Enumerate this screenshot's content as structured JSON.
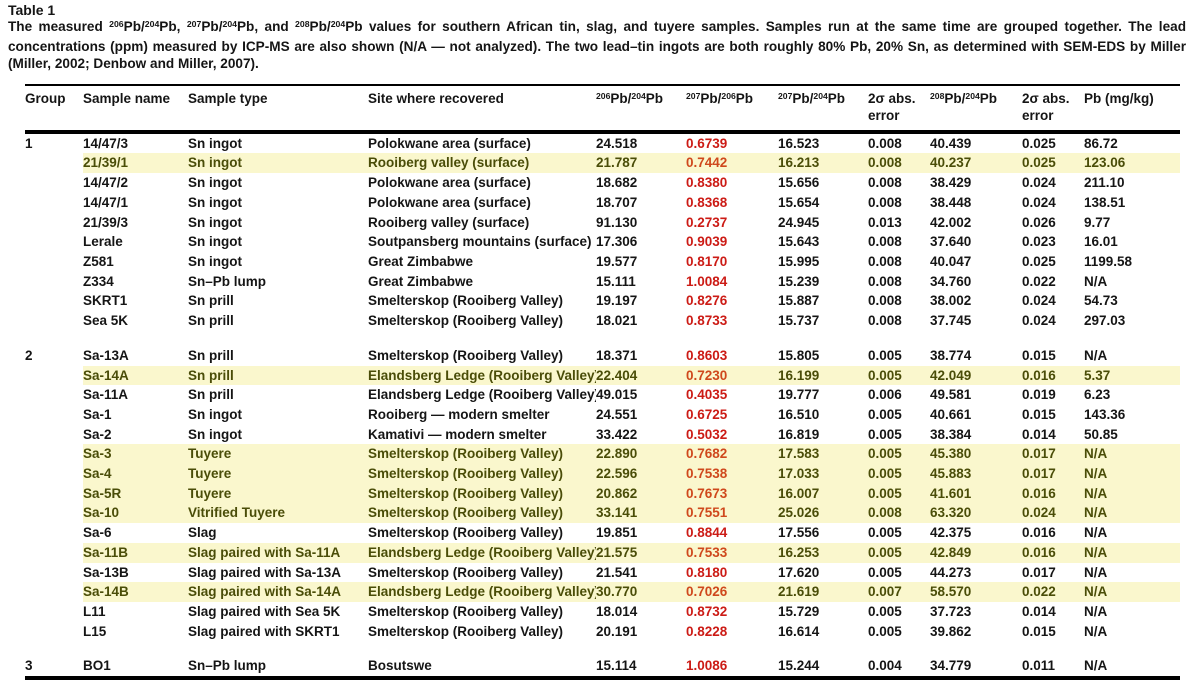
{
  "title": "Table 1",
  "caption": "The measured ^{206}Pb/^{204}Pb, ^{207}Pb/^{204}Pb, and ^{208}Pb/^{204}Pb values for southern African tin, slag, and tuyere samples. Samples run at the same time are grouped together. The lead concentrations (ppm) measured by ICP-MS are also shown (N/A — not analyzed). The two lead–tin ingots are both roughly 80% Pb, 20% Sn, as determined with SEM-EDS by Miller (Miller, 2002; Denbow and Miller, 2007).",
  "colors": {
    "text": "#151515",
    "red": "#cc1b15",
    "red-on-highlight": "#cf481c",
    "highlight-bg": "#faf7cd",
    "highlight-text": "#4a4d08"
  },
  "chart_data": {
    "type": "table",
    "headers": [
      "Group",
      "Sample name",
      "Sample type",
      "Site where recovered",
      "^{206}Pb/^{204}Pb",
      "^{207}Pb/^{206}Pb",
      "^{207}Pb/^{204}Pb",
      "2σ abs. error",
      "^{208}Pb/^{204}Pb",
      "2σ abs. error",
      "Pb (mg/kg)"
    ],
    "groups": [
      {
        "group": "1",
        "rows": [
          {
            "hl": false,
            "cells": [
              "14/47/3",
              "Sn ingot",
              "Polokwane area (surface)",
              "24.518",
              "0.6739",
              "16.523",
              "0.008",
              "40.439",
              "0.025",
              "86.72"
            ]
          },
          {
            "hl": true,
            "cells": [
              "21/39/1",
              "Sn ingot",
              "Rooiberg valley (surface)",
              "21.787",
              "0.7442",
              "16.213",
              "0.008",
              "40.237",
              "0.025",
              "123.06"
            ]
          },
          {
            "hl": false,
            "cells": [
              "14/47/2",
              "Sn ingot",
              "Polokwane area (surface)",
              "18.682",
              "0.8380",
              "15.656",
              "0.008",
              "38.429",
              "0.024",
              "211.10"
            ]
          },
          {
            "hl": false,
            "cells": [
              "14/47/1",
              "Sn ingot",
              "Polokwane area (surface)",
              "18.707",
              "0.8368",
              "15.654",
              "0.008",
              "38.448",
              "0.024",
              "138.51"
            ]
          },
          {
            "hl": false,
            "cells": [
              "21/39/3",
              "Sn ingot",
              "Rooiberg valley (surface)",
              "91.130",
              "0.2737",
              "24.945",
              "0.013",
              "42.002",
              "0.026",
              "9.77"
            ]
          },
          {
            "hl": false,
            "cells": [
              "Lerale",
              "Sn ingot",
              "Soutpansberg mountains (surface)",
              "17.306",
              "0.9039",
              "15.643",
              "0.008",
              "37.640",
              "0.023",
              "16.01"
            ]
          },
          {
            "hl": false,
            "cells": [
              "Z581",
              "Sn ingot",
              "Great Zimbabwe",
              "19.577",
              "0.8170",
              "15.995",
              "0.008",
              "40.047",
              "0.025",
              "1199.58"
            ]
          },
          {
            "hl": false,
            "cells": [
              "Z334",
              "Sn–Pb lump",
              "Great Zimbabwe",
              "15.111",
              "1.0084",
              "15.239",
              "0.008",
              "34.760",
              "0.022",
              "N/A"
            ]
          },
          {
            "hl": false,
            "cells": [
              "SKRT1",
              "Sn prill",
              "Smelterskop (Rooiberg Valley)",
              "19.197",
              "0.8276",
              "15.887",
              "0.008",
              "38.002",
              "0.024",
              "54.73"
            ]
          },
          {
            "hl": false,
            "cells": [
              "Sea 5K",
              "Sn prill",
              "Smelterskop (Rooiberg Valley)",
              "18.021",
              "0.8733",
              "15.737",
              "0.008",
              "37.745",
              "0.024",
              "297.03"
            ]
          }
        ]
      },
      {
        "group": "2",
        "rows": [
          {
            "hl": false,
            "cells": [
              "Sa-13A",
              "Sn prill",
              "Smelterskop (Rooiberg Valley)",
              "18.371",
              "0.8603",
              "15.805",
              "0.005",
              "38.774",
              "0.015",
              "N/A"
            ]
          },
          {
            "hl": true,
            "cells": [
              "Sa-14A",
              "Sn prill",
              "Elandsberg Ledge (Rooiberg Valley)",
              "22.404",
              "0.7230",
              "16.199",
              "0.005",
              "42.049",
              "0.016",
              "5.37"
            ]
          },
          {
            "hl": false,
            "cells": [
              "Sa-11A",
              "Sn prill",
              "Elandsberg Ledge (Rooiberg Valley)",
              "49.015",
              "0.4035",
              "19.777",
              "0.006",
              "49.581",
              "0.019",
              "6.23"
            ]
          },
          {
            "hl": false,
            "cells": [
              "Sa-1",
              "Sn ingot",
              "Rooiberg — modern smelter",
              "24.551",
              "0.6725",
              "16.510",
              "0.005",
              "40.661",
              "0.015",
              "143.36"
            ]
          },
          {
            "hl": false,
            "cells": [
              "Sa-2",
              "Sn ingot",
              "Kamativi — modern smelter",
              "33.422",
              "0.5032",
              "16.819",
              "0.005",
              "38.384",
              "0.014",
              "50.85"
            ]
          },
          {
            "hl": true,
            "cells": [
              "Sa-3",
              "Tuyere",
              "Smelterskop (Rooiberg Valley)",
              "22.890",
              "0.7682",
              "17.583",
              "0.005",
              "45.380",
              "0.017",
              "N/A"
            ]
          },
          {
            "hl": true,
            "cells": [
              "Sa-4",
              "Tuyere",
              "Smelterskop (Rooiberg Valley)",
              "22.596",
              "0.7538",
              "17.033",
              "0.005",
              "45.883",
              "0.017",
              "N/A"
            ]
          },
          {
            "hl": true,
            "cells": [
              "Sa-5R",
              "Tuyere",
              "Smelterskop (Rooiberg Valley)",
              "20.862",
              "0.7673",
              "16.007",
              "0.005",
              "41.601",
              "0.016",
              "N/A"
            ]
          },
          {
            "hl": true,
            "cells": [
              "Sa-10",
              "Vitrified Tuyere",
              "Smelterskop (Rooiberg Valley)",
              "33.141",
              "0.7551",
              "25.026",
              "0.008",
              "63.320",
              "0.024",
              "N/A"
            ]
          },
          {
            "hl": false,
            "cells": [
              "Sa-6",
              "Slag",
              "Smelterskop (Rooiberg Valley)",
              "19.851",
              "0.8844",
              "17.556",
              "0.005",
              "42.375",
              "0.016",
              "N/A"
            ]
          },
          {
            "hl": true,
            "cells": [
              "Sa-11B",
              "Slag paired with Sa-11A",
              "Elandsberg Ledge (Rooiberg Valley)",
              "21.575",
              "0.7533",
              "16.253",
              "0.005",
              "42.849",
              "0.016",
              "N/A"
            ]
          },
          {
            "hl": false,
            "cells": [
              "Sa-13B",
              "Slag paired with Sa-13A",
              "Smelterskop (Rooiberg Valley)",
              "21.541",
              "0.8180",
              "17.620",
              "0.005",
              "44.273",
              "0.017",
              "N/A"
            ]
          },
          {
            "hl": true,
            "cells": [
              "Sa-14B",
              "Slag paired with Sa-14A",
              "Elandsberg Ledge (Rooiberg Valley)",
              "30.770",
              "0.7026",
              "21.619",
              "0.007",
              "58.570",
              "0.022",
              "N/A"
            ]
          },
          {
            "hl": false,
            "cells": [
              "L11",
              "Slag paired with Sea 5K",
              "Smelterskop (Rooiberg Valley)",
              "18.014",
              "0.8732",
              "15.729",
              "0.005",
              "37.723",
              "0.014",
              "N/A"
            ]
          },
          {
            "hl": false,
            "cells": [
              "L15",
              "Slag paired with SKRT1",
              "Smelterskop (Rooiberg Valley)",
              "20.191",
              "0.8228",
              "16.614",
              "0.005",
              "39.862",
              "0.015",
              "N/A"
            ]
          }
        ]
      },
      {
        "group": "3",
        "rows": [
          {
            "hl": false,
            "cells": [
              "BO1",
              "Sn–Pb lump",
              "Bosutswe",
              "15.114",
              "1.0086",
              "15.244",
              "0.004",
              "34.779",
              "0.011",
              "N/A"
            ]
          }
        ]
      }
    ]
  }
}
